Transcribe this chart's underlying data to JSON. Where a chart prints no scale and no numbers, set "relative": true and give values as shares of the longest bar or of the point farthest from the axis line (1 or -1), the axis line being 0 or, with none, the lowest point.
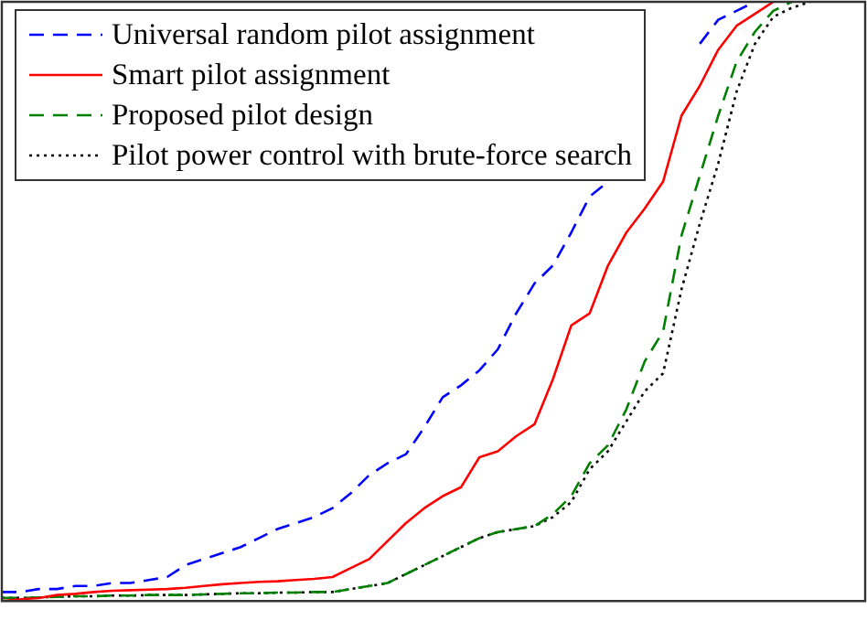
{
  "chart_data": {
    "type": "line",
    "relative": true,
    "grid": false,
    "legend": "top left",
    "marker": "none",
    "categories": [
      null,
      null,
      null,
      null,
      null,
      null,
      null,
      null,
      null,
      null,
      null,
      null,
      null,
      null,
      null,
      null,
      null,
      null,
      null,
      null,
      null,
      null,
      null,
      null,
      null,
      null,
      null,
      null,
      null,
      null,
      null,
      null,
      null,
      null,
      null,
      null,
      null,
      null,
      null,
      null,
      null,
      null,
      null,
      null,
      null,
      null,
      null,
      null
    ],
    "series": [
      {
        "name": "Universal random pilot assignment",
        "color": "#0000ff",
        "line_style": "dashed",
        "values": [
          0.015,
          0.015,
          0.02,
          0.02,
          0.025,
          0.025,
          0.03,
          0.03,
          0.035,
          0.04,
          0.06,
          0.07,
          0.08,
          0.09,
          0.105,
          0.12,
          0.13,
          0.14,
          0.155,
          0.18,
          0.21,
          0.23,
          0.245,
          0.29,
          0.34,
          0.36,
          0.385,
          0.42,
          0.48,
          0.53,
          0.56,
          0.615,
          0.675,
          0.7,
          null,
          null,
          null,
          null,
          0.93,
          0.97,
          0.985,
          1,
          null,
          null,
          null,
          null,
          null,
          null
        ]
      },
      {
        "name": "Smart pilot assignment",
        "color": "#ff0000",
        "line_style": "solid",
        "values": [
          0,
          0.003,
          0.005,
          0.01,
          0.012,
          0.015,
          0.017,
          0.018,
          0.019,
          0.02,
          0.022,
          0.025,
          0.028,
          0.03,
          0.032,
          0.033,
          0.035,
          0.037,
          0.04,
          0.055,
          0.07,
          0.1,
          0.13,
          0.155,
          0.175,
          0.19,
          0.24,
          0.25,
          0.275,
          0.295,
          0.37,
          0.46,
          0.48,
          0.56,
          0.615,
          0.655,
          0.7,
          0.81,
          0.86,
          0.92,
          0.96,
          0.98,
          1,
          null,
          null,
          null,
          null,
          null
        ]
      },
      {
        "name": "Proposed pilot design",
        "color": "#008000",
        "line_style": "dashed",
        "values": [
          0.005,
          0.005,
          0.006,
          0.007,
          0.008,
          0.008,
          0.009,
          0.009,
          0.01,
          0.01,
          0.01,
          0.011,
          0.012,
          0.013,
          0.013,
          0.014,
          0.014,
          0.015,
          0.015,
          0.02,
          0.025,
          0.03,
          0.045,
          0.06,
          0.075,
          0.09,
          0.105,
          0.115,
          0.12,
          0.125,
          0.145,
          0.175,
          0.23,
          0.26,
          0.32,
          0.4,
          0.45,
          0.61,
          0.71,
          0.81,
          0.9,
          0.95,
          0.985,
          1,
          null,
          null,
          null,
          null
        ]
      },
      {
        "name": "Pilot power control with brute-force search",
        "color": "#000000",
        "line_style": "dotted",
        "values": [
          0.005,
          0.005,
          0.006,
          0.007,
          0.008,
          0.008,
          0.009,
          0.009,
          0.01,
          0.01,
          0.01,
          0.011,
          0.012,
          0.013,
          0.013,
          0.014,
          0.014,
          0.015,
          0.015,
          0.02,
          0.025,
          0.03,
          0.045,
          0.06,
          0.075,
          0.09,
          0.105,
          0.115,
          0.12,
          0.125,
          0.14,
          0.165,
          0.22,
          0.25,
          0.3,
          0.35,
          0.38,
          0.52,
          0.63,
          0.73,
          0.85,
          0.93,
          0.975,
          0.99,
          1,
          null,
          null,
          null
        ]
      }
    ]
  }
}
